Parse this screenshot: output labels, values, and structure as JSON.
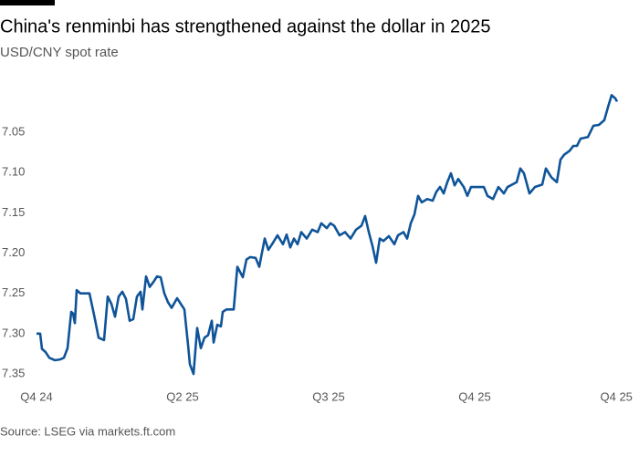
{
  "chart_data": {
    "type": "line",
    "title": "China's renminbi has strengthened against the dollar in 2025",
    "subtitle": "USD/CNY spot rate",
    "source": "Source: LSEG via markets.ft.com",
    "x": [
      0,
      0.05,
      0.075,
      0.125,
      0.175,
      0.25,
      0.325,
      0.375,
      0.425,
      0.475,
      0.5,
      0.525,
      0.55,
      0.6,
      0.725,
      0.8,
      0.85,
      0.925,
      0.975,
      1.025,
      1.075,
      1.125,
      1.175,
      1.225,
      1.275,
      1.325,
      1.375,
      1.425,
      1.45,
      1.5,
      1.55,
      1.6,
      1.65,
      1.7,
      1.75,
      1.8,
      1.85,
      1.925,
      1.975,
      2.025,
      2.075,
      2.1,
      2.15,
      2.2,
      2.25,
      2.3,
      2.35,
      2.4,
      2.425,
      2.475,
      2.525,
      2.55,
      2.6,
      2.7,
      2.75,
      2.825,
      2.875,
      2.925,
      3.0,
      3.05,
      3.125,
      3.175,
      3.225,
      3.3,
      3.375,
      3.425,
      3.475,
      3.525,
      3.575,
      3.625,
      3.7,
      3.775,
      3.85,
      3.9,
      3.975,
      4.025,
      4.075,
      4.15,
      4.225,
      4.3,
      4.375,
      4.45,
      4.5,
      4.55,
      4.6,
      4.65,
      4.7,
      4.75,
      4.825,
      4.9,
      4.95,
      5.025,
      5.075,
      5.125,
      5.175,
      5.225,
      5.275,
      5.35,
      5.425,
      5.475,
      5.525,
      5.575,
      5.625,
      5.675,
      5.725,
      5.775,
      5.85,
      5.9,
      5.95,
      6.125,
      6.175,
      6.25,
      6.325,
      6.4,
      6.45,
      6.575,
      6.625,
      6.675,
      6.75,
      6.825,
      6.925,
      6.975,
      7.05,
      7.125,
      7.175,
      7.225,
      7.3,
      7.35,
      7.4,
      7.45,
      7.55,
      7.625,
      7.7,
      7.775,
      7.825,
      7.875,
      7.925,
      7.95
    ],
    "series": [
      {
        "name": "USD/CNY",
        "color": "#0f5499",
        "values": [
          7.3,
          7.3,
          7.319,
          7.323,
          7.33,
          7.333,
          7.332,
          7.33,
          7.318,
          7.273,
          7.275,
          7.287,
          7.246,
          7.25,
          7.25,
          7.282,
          7.305,
          7.308,
          7.254,
          7.263,
          7.279,
          7.254,
          7.248,
          7.257,
          7.284,
          7.282,
          7.254,
          7.248,
          7.27,
          7.229,
          7.242,
          7.236,
          7.229,
          7.23,
          7.25,
          7.261,
          7.268,
          7.256,
          7.263,
          7.27,
          7.314,
          7.338,
          7.35,
          7.293,
          7.318,
          7.305,
          7.302,
          7.284,
          7.311,
          7.289,
          7.291,
          7.273,
          7.27,
          7.27,
          7.217,
          7.23,
          7.208,
          7.205,
          7.206,
          7.217,
          7.182,
          7.196,
          7.189,
          7.178,
          7.189,
          7.177,
          7.193,
          7.182,
          7.189,
          7.174,
          7.182,
          7.171,
          7.174,
          7.163,
          7.169,
          7.163,
          7.166,
          7.178,
          7.174,
          7.182,
          7.171,
          7.166,
          7.154,
          7.174,
          7.191,
          7.212,
          7.182,
          7.185,
          7.179,
          7.189,
          7.178,
          7.174,
          7.182,
          7.163,
          7.152,
          7.129,
          7.137,
          7.133,
          7.135,
          7.124,
          7.118,
          7.126,
          7.112,
          7.101,
          7.116,
          7.108,
          7.118,
          7.129,
          7.118,
          7.118,
          7.129,
          7.133,
          7.118,
          7.126,
          7.118,
          7.112,
          7.095,
          7.101,
          7.126,
          7.118,
          7.115,
          7.095,
          7.106,
          7.112,
          7.084,
          7.078,
          7.073,
          7.067,
          7.067,
          7.058,
          7.056,
          7.042,
          7.041,
          7.035,
          7.019,
          7.004,
          7.008,
          7.012
        ]
      }
    ],
    "xlim": [
      0,
      7.95
    ],
    "xticks": [
      {
        "value": 0,
        "label": "Q4 24"
      },
      {
        "value": 2,
        "label": "Q2 25"
      },
      {
        "value": 4,
        "label": "Q3 25"
      },
      {
        "value": 6,
        "label": "Q4 25"
      },
      {
        "value": 7.94,
        "label": "Q4 25"
      }
    ],
    "ylim": [
      7.35,
      7.0
    ],
    "yticks": [
      7.05,
      {
        "value": 7.1,
        "label": "7.10"
      },
      7.15,
      {
        "value": 7.2,
        "label": "7.20"
      },
      7.25,
      {
        "value": 7.3,
        "label": "7.30"
      },
      7.35
    ],
    "grid": false
  }
}
